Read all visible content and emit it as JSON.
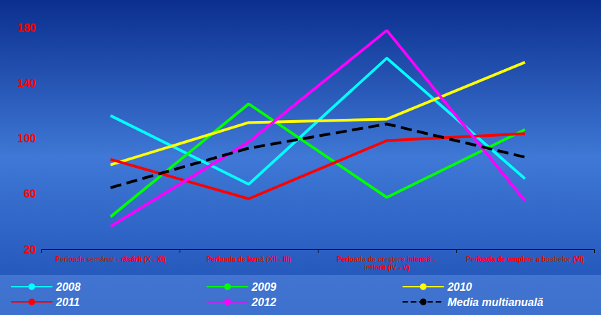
{
  "chart_data": {
    "type": "line",
    "categories": [
      "Perioada semănat - răsărit (X - XI)",
      "Perioada de iarnă (XII - III)",
      "Perioada de creştere intensă - înflorit (IV - V)",
      "Perioada de umplere a boabelor (VI)"
    ],
    "series": [
      {
        "name": "2008",
        "color": "#00ffff",
        "line_style": "solid",
        "marker": "none",
        "values": [
          116.5,
          67,
          158,
          71
        ]
      },
      {
        "name": "2009",
        "color": "#00ff00",
        "line_style": "solid",
        "marker": "none",
        "values": [
          43.5,
          125,
          57.5,
          106.5
        ]
      },
      {
        "name": "2010",
        "color": "#ffff00",
        "line_style": "solid",
        "marker": "none",
        "values": [
          81,
          111.5,
          114,
          155
        ]
      },
      {
        "name": "2011",
        "color": "#ff0000",
        "line_style": "solid",
        "marker": "none",
        "values": [
          85,
          56.5,
          98.5,
          103.5
        ]
      },
      {
        "name": "2012",
        "color": "#ff00ff",
        "line_style": "solid",
        "marker": "none",
        "values": [
          36.5,
          97.5,
          178,
          55
        ]
      },
      {
        "name": "Media multianuală",
        "color": "#000000",
        "line_style": "dashed",
        "marker": "none",
        "values": [
          64.5,
          93,
          110.5,
          86.5
        ]
      }
    ],
    "ylim": [
      20,
      180
    ],
    "yticks": [
      20,
      60,
      100,
      140,
      180
    ],
    "grid": false,
    "legend": "bottom"
  }
}
